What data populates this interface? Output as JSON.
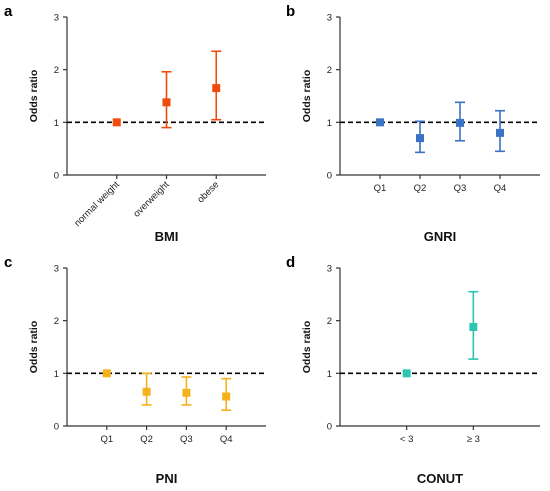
{
  "figure": {
    "reference_line": 1,
    "reference_style": "dashed",
    "grid": false,
    "legend": "none"
  },
  "chart_data": [
    {
      "type": "scatter",
      "panel_label": "a",
      "title": "",
      "xlabel": "BMI",
      "ylabel": "Odds ratio",
      "ylim": [
        0,
        3
      ],
      "yticks": [
        "0",
        "1",
        "2",
        "3"
      ],
      "categories": [
        "normal weight",
        "overweight",
        "obese"
      ],
      "x_tick_rotation": -45,
      "color": "#EE4B0E",
      "points": [
        {
          "category": "normal weight",
          "or": 1.0,
          "lower": 1.0,
          "upper": 1.0
        },
        {
          "category": "overweight",
          "or": 1.38,
          "lower": 0.9,
          "upper": 1.96
        },
        {
          "category": "obese",
          "or": 1.65,
          "lower": 1.05,
          "upper": 2.35
        }
      ]
    },
    {
      "type": "scatter",
      "panel_label": "b",
      "title": "",
      "xlabel": "GNRI",
      "ylabel": "Odds ratio",
      "ylim": [
        0,
        3
      ],
      "yticks": [
        "0",
        "1",
        "2",
        "3"
      ],
      "categories": [
        "Q1",
        "Q2",
        "Q3",
        "Q4"
      ],
      "x_tick_rotation": 0,
      "color": "#3A72C4",
      "points": [
        {
          "category": "Q1",
          "or": 1.0,
          "lower": 1.0,
          "upper": 1.0
        },
        {
          "category": "Q2",
          "or": 0.7,
          "lower": 0.43,
          "upper": 1.02
        },
        {
          "category": "Q3",
          "or": 0.99,
          "lower": 0.65,
          "upper": 1.38
        },
        {
          "category": "Q4",
          "or": 0.8,
          "lower": 0.45,
          "upper": 1.22
        }
      ]
    },
    {
      "type": "scatter",
      "panel_label": "c",
      "title": "",
      "xlabel": "PNI",
      "ylabel": "Odds ratio",
      "ylim": [
        0,
        3
      ],
      "yticks": [
        "0",
        "1",
        "2",
        "3"
      ],
      "categories": [
        "Q1",
        "Q2",
        "Q3",
        "Q4"
      ],
      "x_tick_rotation": 0,
      "color": "#F5B21B",
      "points": [
        {
          "category": "Q1",
          "or": 1.0,
          "lower": 1.0,
          "upper": 1.0
        },
        {
          "category": "Q2",
          "or": 0.65,
          "lower": 0.4,
          "upper": 1.0
        },
        {
          "category": "Q3",
          "or": 0.63,
          "lower": 0.4,
          "upper": 0.93
        },
        {
          "category": "Q4",
          "or": 0.56,
          "lower": 0.3,
          "upper": 0.9
        }
      ]
    },
    {
      "type": "scatter",
      "panel_label": "d",
      "title": "",
      "xlabel": "CONUT",
      "ylabel": "Odds ratio",
      "ylim": [
        0,
        3
      ],
      "yticks": [
        "0",
        "1",
        "2",
        "3"
      ],
      "categories": [
        "< 3",
        "≥ 3"
      ],
      "x_tick_rotation": 0,
      "color": "#2EC4B2",
      "points": [
        {
          "category": "< 3",
          "or": 1.0,
          "lower": 1.0,
          "upper": 1.0
        },
        {
          "category": "≥ 3",
          "or": 1.88,
          "lower": 1.27,
          "upper": 2.55
        }
      ]
    }
  ]
}
